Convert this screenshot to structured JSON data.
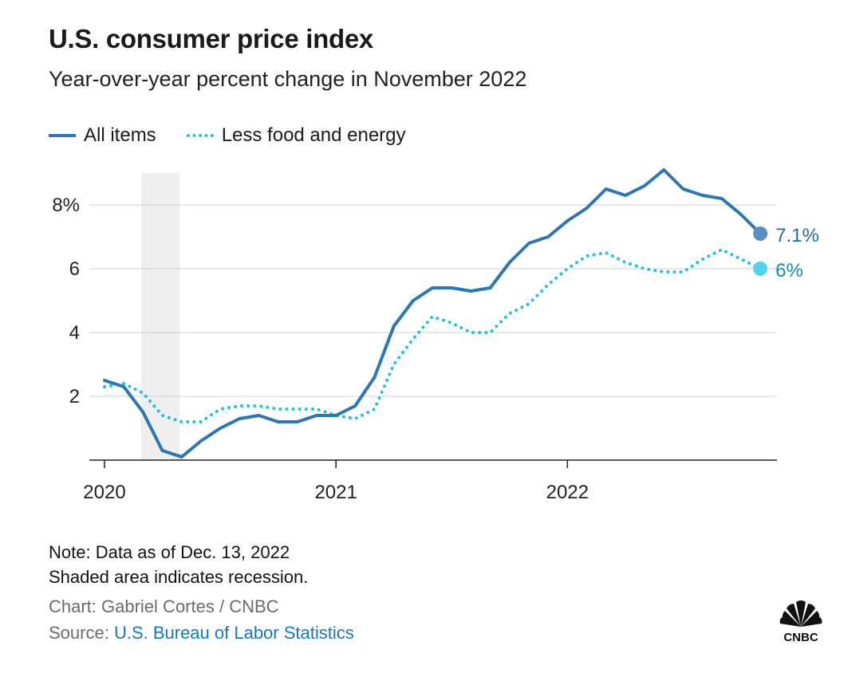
{
  "title": "U.S. consumer price index",
  "subtitle": "Year-over-year percent change in November 2022",
  "legend": [
    {
      "label": "All items",
      "style": "solid",
      "color": "#2a77b3"
    },
    {
      "label": "Less food and energy",
      "style": "dotted",
      "color": "#1ec3dc"
    }
  ],
  "notes": {
    "line1": "Note: Data as of Dec. 13, 2022",
    "line2": "Shaded area indicates recession.",
    "credit": "Chart: Gabriel Cortes / CNBC",
    "source_prefix": "Source: ",
    "source_link": "U.S. Bureau of Labor Statistics"
  },
  "logo": {
    "text": "CNBC",
    "icon": "nbc-peacock-icon"
  },
  "chart_data": {
    "type": "line",
    "x_start": "2020-01",
    "x_end": "2022-11",
    "x_ticks": [
      {
        "x": 0,
        "label": "2020"
      },
      {
        "x": 12,
        "label": "2021"
      },
      {
        "x": 24,
        "label": "2022"
      }
    ],
    "y_ticks": [
      {
        "y": 2,
        "label": "2"
      },
      {
        "y": 4,
        "label": "4"
      },
      {
        "y": 6,
        "label": "6"
      },
      {
        "y": 8,
        "label": "8%"
      }
    ],
    "ylim": [
      0,
      9
    ],
    "recession": {
      "start": 1.9,
      "end": 3.9
    },
    "grid": "horizontal",
    "series": [
      {
        "name": "All items",
        "color": "#2a77b3",
        "dot_color": "#5a8fc4",
        "style": "solid",
        "end_label": "7.1%",
        "values": [
          2.5,
          2.3,
          1.5,
          0.3,
          0.1,
          0.6,
          1.0,
          1.3,
          1.4,
          1.2,
          1.2,
          1.4,
          1.4,
          1.7,
          2.6,
          4.2,
          5.0,
          5.4,
          5.4,
          5.3,
          5.4,
          6.2,
          6.8,
          7.0,
          7.5,
          7.9,
          8.5,
          8.3,
          8.6,
          9.1,
          8.5,
          8.3,
          8.2,
          7.7,
          7.1
        ]
      },
      {
        "name": "Less food and energy",
        "color": "#1ec3dc",
        "dot_color": "#4fd4ea",
        "style": "dotted",
        "end_label": "6%",
        "values": [
          2.3,
          2.4,
          2.1,
          1.4,
          1.2,
          1.2,
          1.6,
          1.7,
          1.7,
          1.6,
          1.6,
          1.6,
          1.4,
          1.3,
          1.6,
          3.0,
          3.8,
          4.5,
          4.3,
          4.0,
          4.0,
          4.6,
          4.9,
          5.5,
          6.0,
          6.4,
          6.5,
          6.2,
          6.0,
          5.9,
          5.9,
          6.3,
          6.6,
          6.3,
          6.0
        ]
      }
    ]
  }
}
